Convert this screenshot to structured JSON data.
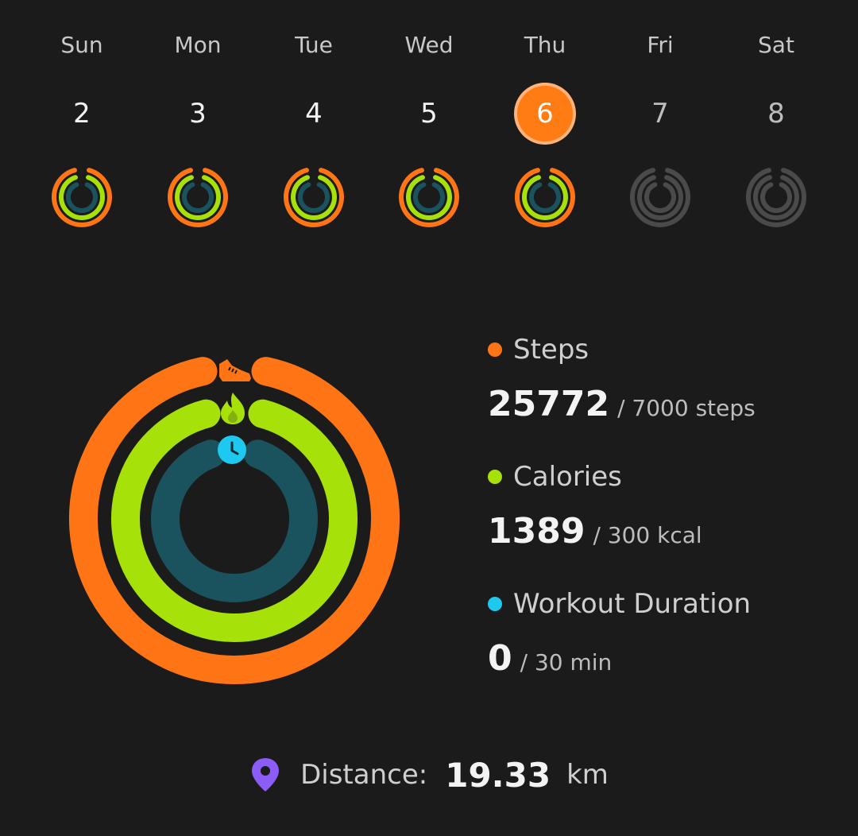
{
  "week": [
    {
      "name": "Sun",
      "date": "2",
      "state": "done"
    },
    {
      "name": "Mon",
      "date": "3",
      "state": "done"
    },
    {
      "name": "Tue",
      "date": "4",
      "state": "done"
    },
    {
      "name": "Wed",
      "date": "5",
      "state": "done"
    },
    {
      "name": "Thu",
      "date": "6",
      "state": "selected"
    },
    {
      "name": "Fri",
      "date": "7",
      "state": "future"
    },
    {
      "name": "Sat",
      "date": "8",
      "state": "future"
    }
  ],
  "colors": {
    "steps": "#ff7516",
    "calories": "#a7e10a",
    "workout": "#1a525d",
    "workout_dot": "#1ec9f0",
    "inactive": "#4a4a4a",
    "pin": "#8b5cf6"
  },
  "metrics": {
    "steps": {
      "label": "Steps",
      "value": "25772",
      "goal": "/ 7000 steps",
      "progress": 1.0
    },
    "calories": {
      "label": "Calories",
      "value": "1389",
      "goal": "/ 300 kcal",
      "progress": 1.0
    },
    "workout": {
      "label": "Workout Duration",
      "value": "0",
      "goal": "/ 30 min",
      "progress": 0.0
    }
  },
  "distance": {
    "label": "Distance:",
    "value": "19.33",
    "unit": "km"
  },
  "icons": {
    "steps": "shoe-icon",
    "calories": "flame-icon",
    "workout": "clock-icon",
    "distance": "location-pin-icon"
  }
}
